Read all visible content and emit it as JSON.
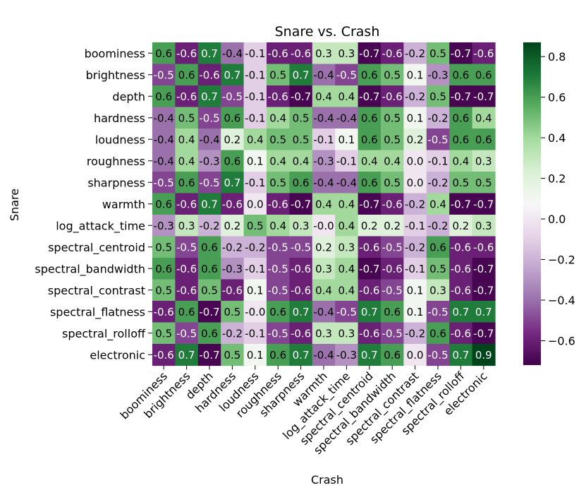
{
  "chart_data": {
    "type": "heatmap",
    "title": "Snare vs. Crash",
    "xlabel": "Crash",
    "ylabel": "Snare",
    "x_categories": [
      "boominess",
      "brightness",
      "depth",
      "hardness",
      "loudness",
      "roughness",
      "sharpness",
      "warmth",
      "log_attack_time",
      "spectral_centroid",
      "spectral_bandwidth",
      "spectral_contrast",
      "spectral_flatness",
      "spectral_rolloff",
      "electronic"
    ],
    "y_categories": [
      "boominess",
      "brightness",
      "depth",
      "hardness",
      "loudness",
      "roughness",
      "sharpness",
      "warmth",
      "log_attack_time",
      "spectral_centroid",
      "spectral_bandwidth",
      "spectral_contrast",
      "spectral_flatness",
      "spectral_rolloff",
      "electronic"
    ],
    "values": [
      [
        0.6,
        -0.6,
        0.7,
        -0.4,
        -0.1,
        -0.6,
        -0.6,
        0.3,
        0.3,
        -0.7,
        -0.6,
        -0.2,
        0.5,
        -0.7,
        -0.6
      ],
      [
        -0.5,
        0.6,
        -0.6,
        0.7,
        -0.1,
        0.5,
        0.7,
        -0.4,
        -0.5,
        0.6,
        0.5,
        0.1,
        -0.3,
        0.6,
        0.6
      ],
      [
        0.6,
        -0.6,
        0.7,
        -0.5,
        -0.1,
        -0.6,
        -0.7,
        0.4,
        0.4,
        -0.7,
        -0.6,
        -0.2,
        0.5,
        -0.7,
        -0.7
      ],
      [
        -0.4,
        0.5,
        -0.5,
        0.6,
        -0.1,
        0.4,
        0.5,
        -0.4,
        -0.4,
        0.6,
        0.5,
        0.1,
        -0.2,
        0.6,
        0.4
      ],
      [
        -0.4,
        0.4,
        -0.4,
        0.2,
        0.4,
        0.5,
        0.5,
        -0.1,
        0.1,
        0.6,
        0.5,
        0.2,
        -0.5,
        0.6,
        0.6
      ],
      [
        -0.4,
        0.4,
        -0.3,
        0.6,
        0.1,
        0.4,
        0.4,
        -0.3,
        -0.1,
        0.4,
        0.4,
        0.0,
        -0.1,
        0.4,
        0.3
      ],
      [
        -0.5,
        0.6,
        -0.5,
        0.7,
        -0.1,
        0.5,
        0.6,
        -0.4,
        -0.4,
        0.6,
        0.5,
        0.0,
        -0.2,
        0.5,
        0.5
      ],
      [
        0.6,
        -0.6,
        0.7,
        -0.6,
        0.0,
        -0.6,
        -0.7,
        0.4,
        0.4,
        -0.7,
        -0.6,
        -0.2,
        0.4,
        -0.7,
        -0.7
      ],
      [
        -0.3,
        0.3,
        -0.2,
        0.2,
        0.5,
        0.4,
        0.3,
        -0.0,
        0.4,
        0.2,
        0.2,
        -0.1,
        -0.2,
        0.2,
        0.3
      ],
      [
        0.5,
        -0.5,
        0.6,
        -0.2,
        -0.2,
        -0.5,
        -0.5,
        0.2,
        0.3,
        -0.6,
        -0.5,
        -0.2,
        0.6,
        -0.6,
        -0.6
      ],
      [
        0.6,
        -0.6,
        0.6,
        -0.3,
        -0.1,
        -0.5,
        -0.6,
        0.3,
        0.4,
        -0.7,
        -0.6,
        -0.1,
        0.5,
        -0.6,
        -0.7
      ],
      [
        0.5,
        -0.6,
        0.5,
        -0.6,
        0.1,
        -0.5,
        -0.6,
        0.4,
        0.4,
        -0.6,
        -0.5,
        0.1,
        0.3,
        -0.6,
        -0.7
      ],
      [
        -0.6,
        0.6,
        -0.7,
        0.5,
        -0.0,
        0.6,
        0.7,
        -0.4,
        -0.5,
        0.7,
        0.6,
        0.1,
        -0.5,
        0.7,
        0.7
      ],
      [
        0.5,
        -0.5,
        0.6,
        -0.2,
        -0.1,
        -0.5,
        -0.6,
        0.3,
        0.3,
        -0.6,
        -0.5,
        -0.2,
        0.6,
        -0.6,
        -0.7
      ],
      [
        -0.6,
        0.7,
        -0.7,
        0.5,
        0.1,
        0.6,
        0.7,
        -0.4,
        -0.3,
        0.7,
        0.6,
        0.0,
        -0.5,
        0.7,
        0.9
      ]
    ],
    "colormap": "PRGn",
    "vmin": -0.72,
    "vmax": 0.87,
    "colorbar_ticks": [
      0.8,
      0.6,
      0.4,
      0.2,
      0.0,
      -0.2,
      -0.4,
      -0.6
    ],
    "colorbar_tick_labels": [
      "0.8",
      "0.6",
      "0.4",
      "0.2",
      "0.0",
      "−0.2",
      "−0.4",
      "−0.6"
    ]
  }
}
